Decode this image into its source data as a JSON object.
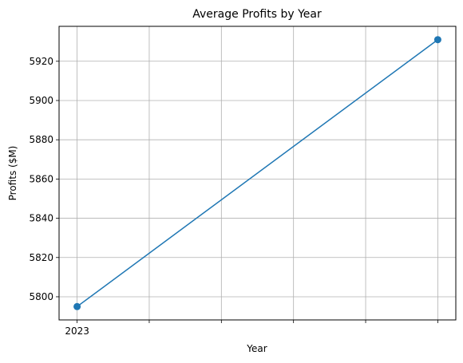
{
  "chart_data": {
    "type": "line",
    "title": "Average Profits by Year",
    "xlabel": "Year",
    "ylabel": "Profits ($M)",
    "x": [
      2023,
      2024
    ],
    "series": [
      {
        "values": [
          5795,
          5931
        ],
        "color": "#1f77b4",
        "marker": "circle"
      }
    ],
    "xlim": [
      2022.95,
      2024.05
    ],
    "ylim": [
      5788.2,
      5937.8
    ],
    "xticks": [
      2023,
      2023.2,
      2023.4,
      2023.6,
      2023.8,
      2024
    ],
    "xtick_labels": [
      "2023",
      "",
      "",
      "",
      "",
      ""
    ],
    "yticks": [
      5800,
      5820,
      5840,
      5860,
      5880,
      5900,
      5920
    ],
    "ytick_labels": [
      "5800",
      "5820",
      "5840",
      "5860",
      "5880",
      "5900",
      "5920"
    ],
    "grid": true,
    "grid_color": "#b0b0b0",
    "axis_color": "#000000"
  }
}
